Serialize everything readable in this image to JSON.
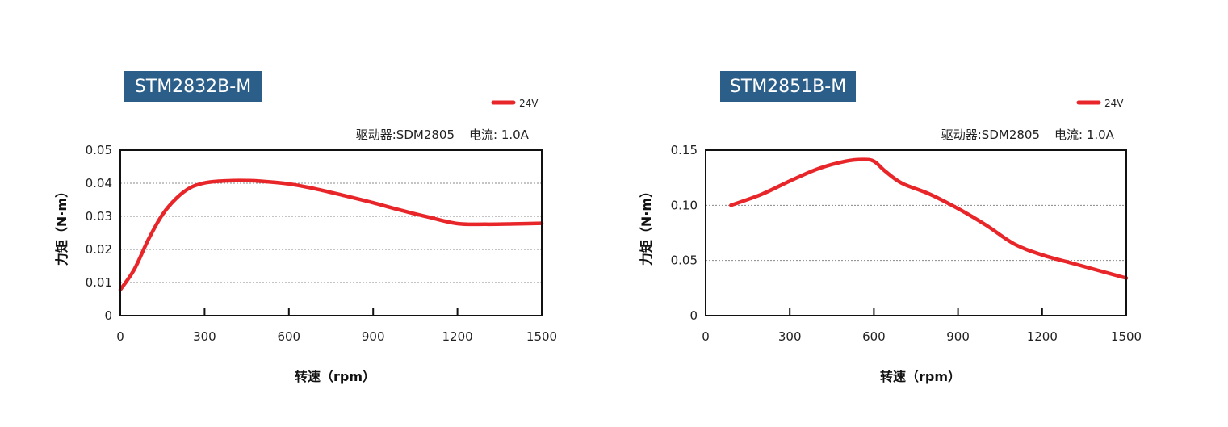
{
  "chart_data": [
    {
      "type": "line",
      "title": "STM2832B-M",
      "driver_info": "驱动器:SDM2805",
      "current_info": "电流: 1.0A",
      "xlabel": "转速（rpm）",
      "ylabel": "力矩（N·m）",
      "xlim": [
        0,
        1500
      ],
      "ylim": [
        0,
        0.05
      ],
      "x_ticks": [
        0,
        300,
        600,
        900,
        1200,
        1500
      ],
      "x_tick_labels": [
        "0",
        "300",
        "600",
        "900",
        "1200",
        "1500"
      ],
      "y_ticks": [
        0,
        0.01,
        0.02,
        0.03,
        0.04,
        0.05
      ],
      "y_tick_labels": [
        "0",
        "0.01",
        "0.02",
        "0.03",
        "0.04",
        "0.05"
      ],
      "grid": true,
      "legend_position": "top-right",
      "series": [
        {
          "name": "24V",
          "color": "#e8262a",
          "x": [
            0,
            50,
            100,
            150,
            200,
            250,
            300,
            350,
            400,
            450,
            500,
            600,
            700,
            800,
            900,
            1000,
            1100,
            1200,
            1300,
            1400,
            1500
          ],
          "y": [
            0.0078,
            0.014,
            0.023,
            0.0305,
            0.0355,
            0.0387,
            0.0401,
            0.0406,
            0.0408,
            0.0408,
            0.0406,
            0.0398,
            0.0382,
            0.0362,
            0.0341,
            0.0318,
            0.0297,
            0.0278,
            0.0276,
            0.0277,
            0.0279
          ]
        }
      ]
    },
    {
      "type": "line",
      "title": "STM2851B-M",
      "driver_info": "驱动器:SDM2805",
      "current_info": "电流: 1.0A",
      "xlabel": "转速（rpm）",
      "ylabel": "力矩（N·m）",
      "xlim": [
        0,
        1500
      ],
      "ylim": [
        0,
        0.15
      ],
      "x_ticks": [
        0,
        300,
        600,
        900,
        1200,
        1500
      ],
      "x_tick_labels": [
        "0",
        "300",
        "600",
        "900",
        "1200",
        "1500"
      ],
      "y_ticks": [
        0,
        0.05,
        0.1,
        0.15
      ],
      "y_tick_labels": [
        "0",
        "0.05",
        "0.10",
        "0.15"
      ],
      "grid": true,
      "legend_position": "top-right",
      "series": [
        {
          "name": "24V",
          "color": "#e8262a",
          "x": [
            90,
            200,
            300,
            400,
            500,
            560,
            600,
            640,
            700,
            800,
            900,
            1000,
            1100,
            1200,
            1300,
            1400,
            1500
          ],
          "y": [
            0.1,
            0.11,
            0.122,
            0.133,
            0.14,
            0.1415,
            0.14,
            0.131,
            0.12,
            0.11,
            0.097,
            0.082,
            0.065,
            0.055,
            0.048,
            0.041,
            0.034
          ]
        }
      ]
    }
  ]
}
